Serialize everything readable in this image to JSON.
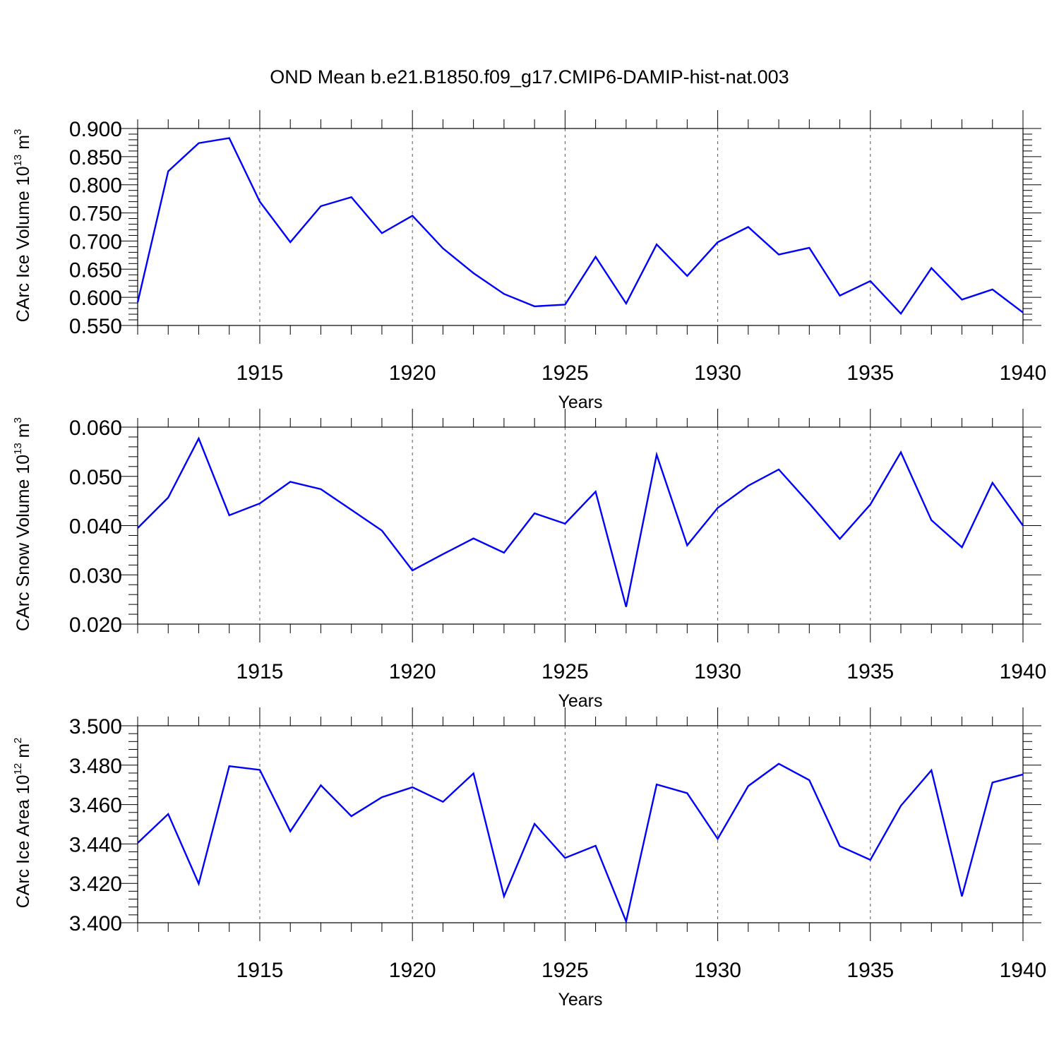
{
  "chart_data": {
    "title": "OND Mean b.e21.B1850.f09_g17.CMIP6-DAMIP-hist-nat.003",
    "type": "line",
    "line_color": "#0000ff",
    "grid": "dashed vertical lines at major x ticks",
    "panels": [
      {
        "ylabel": "CArc Ice Volume",
        "ylabel_unit_base": "10",
        "ylabel_unit_exp": "13",
        "ylabel_unit_rest": "m",
        "ylabel_unit_rest_exp": "3",
        "xlabel": "Years",
        "xlim": [
          1911,
          1940
        ],
        "ylim": [
          0.55,
          0.9
        ],
        "x_ticks": [
          "1915",
          "1920",
          "1925",
          "1930",
          "1935",
          "1940"
        ],
        "y_ticks": [
          "0.550",
          "0.600",
          "0.650",
          "0.700",
          "0.750",
          "0.800",
          "0.850",
          "0.900"
        ],
        "x": [
          1911,
          1912,
          1913,
          1914,
          1915,
          1916,
          1917,
          1918,
          1919,
          1920,
          1921,
          1922,
          1923,
          1924,
          1925,
          1926,
          1927,
          1928,
          1929,
          1930,
          1931,
          1932,
          1933,
          1934,
          1935,
          1936,
          1937,
          1938,
          1939,
          1940
        ],
        "values": [
          0.591,
          0.824,
          0.874,
          0.883,
          0.77,
          0.698,
          0.762,
          0.778,
          0.714,
          0.745,
          0.687,
          0.643,
          0.606,
          0.584,
          0.587,
          0.672,
          0.589,
          0.694,
          0.638,
          0.698,
          0.725,
          0.676,
          0.688,
          0.603,
          0.629,
          0.571,
          0.652,
          0.596,
          0.614,
          0.573
        ]
      },
      {
        "ylabel": "CArc Snow Volume",
        "ylabel_unit_base": "10",
        "ylabel_unit_exp": "13",
        "ylabel_unit_rest": "m",
        "ylabel_unit_rest_exp": "3",
        "xlabel": "Years",
        "xlim": [
          1911,
          1940
        ],
        "ylim": [
          0.02,
          0.06
        ],
        "x_ticks": [
          "1915",
          "1920",
          "1925",
          "1930",
          "1935",
          "1940"
        ],
        "y_ticks": [
          "0.020",
          "0.030",
          "0.040",
          "0.050",
          "0.060"
        ],
        "x": [
          1911,
          1912,
          1913,
          1914,
          1915,
          1916,
          1917,
          1918,
          1919,
          1920,
          1921,
          1922,
          1923,
          1924,
          1925,
          1926,
          1927,
          1928,
          1929,
          1930,
          1931,
          1932,
          1933,
          1934,
          1935,
          1936,
          1937,
          1938,
          1939,
          1940
        ],
        "values": [
          0.0395,
          0.0457,
          0.0577,
          0.0421,
          0.0445,
          0.0489,
          0.0474,
          0.0432,
          0.039,
          0.0309,
          0.0342,
          0.0374,
          0.0345,
          0.0425,
          0.0404,
          0.0469,
          0.0235,
          0.0544,
          0.036,
          0.0436,
          0.0481,
          0.0514,
          0.0445,
          0.0373,
          0.0443,
          0.0549,
          0.0411,
          0.0356,
          0.0487,
          0.04
        ]
      },
      {
        "ylabel": "CArc Ice Area",
        "ylabel_unit_base": "10",
        "ylabel_unit_exp": "12",
        "ylabel_unit_rest": "m",
        "ylabel_unit_rest_exp": "2",
        "xlabel": "Years",
        "xlim": [
          1911,
          1940
        ],
        "ylim": [
          3.4,
          3.5
        ],
        "x_ticks": [
          "1915",
          "1920",
          "1925",
          "1930",
          "1935",
          "1940"
        ],
        "y_ticks": [
          "3.400",
          "3.420",
          "3.440",
          "3.460",
          "3.480",
          "3.500"
        ],
        "x": [
          1911,
          1912,
          1913,
          1914,
          1915,
          1916,
          1917,
          1918,
          1919,
          1920,
          1921,
          1922,
          1923,
          1924,
          1925,
          1926,
          1927,
          1928,
          1929,
          1930,
          1931,
          1932,
          1933,
          1934,
          1935,
          1936,
          1937,
          1938,
          1939,
          1940
        ],
        "values": [
          3.4405,
          3.4552,
          3.4198,
          3.4795,
          3.4776,
          3.4464,
          3.4698,
          3.4541,
          3.4637,
          3.4688,
          3.4614,
          3.4758,
          3.4134,
          3.4502,
          3.4329,
          3.4391,
          3.4007,
          3.4702,
          3.4658,
          3.4426,
          3.4694,
          3.4807,
          3.4724,
          3.4389,
          3.4319,
          3.4594,
          3.4774,
          3.4134,
          3.4712,
          3.4753
        ]
      }
    ]
  }
}
